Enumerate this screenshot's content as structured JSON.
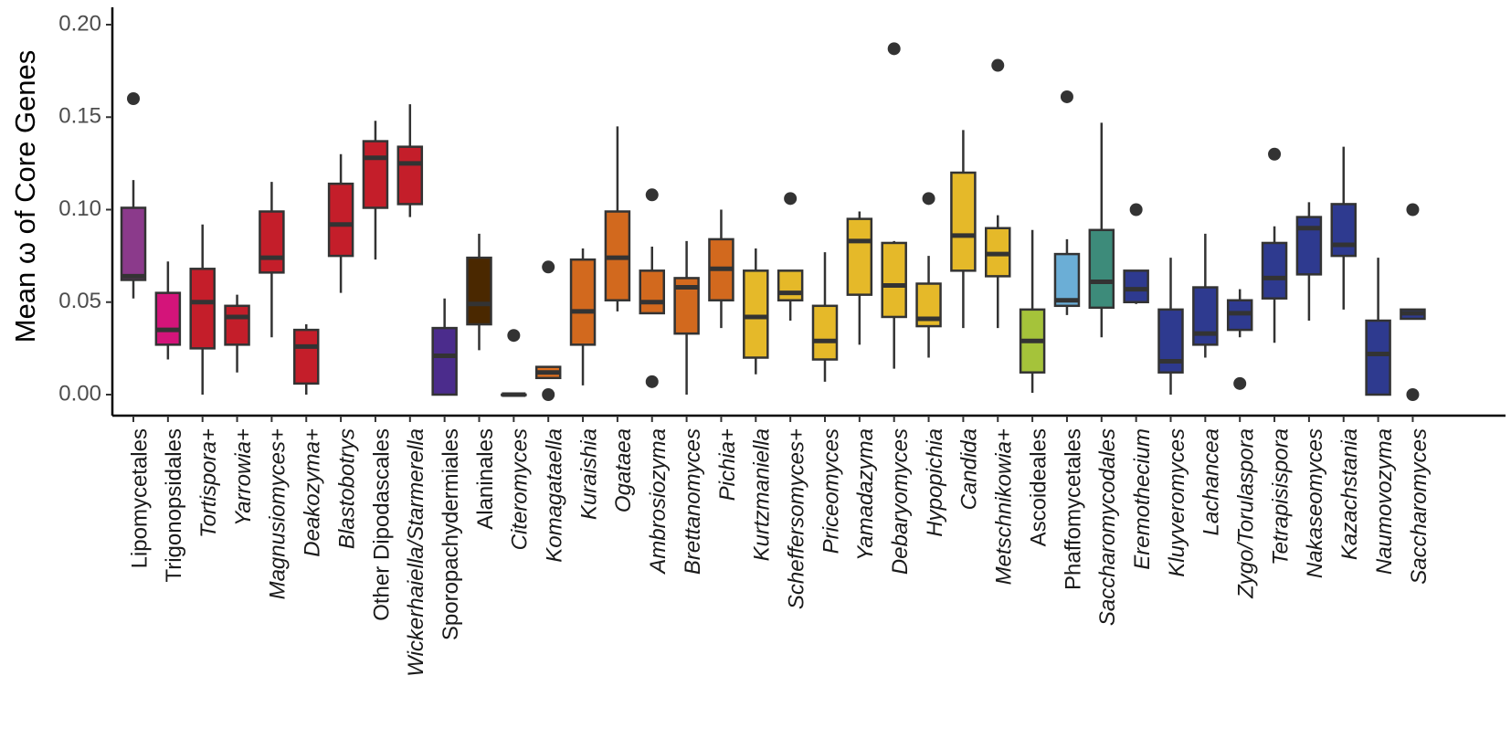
{
  "chart_data": {
    "type": "box",
    "title": "",
    "xlabel": "",
    "ylabel": "Mean ω of Core Genes",
    "ylim": [
      -0.01,
      0.21
    ],
    "yticks": [
      0.0,
      0.05,
      0.1,
      0.15,
      0.2
    ],
    "ytick_labels": [
      "0.00",
      "0.05",
      "0.10",
      "0.15",
      "0.20"
    ],
    "grid": false,
    "legend": "none",
    "groups": [
      {
        "label": "Lipomycetales",
        "italic": false,
        "color": "#8B3A8B",
        "min": 0.052,
        "q1": 0.062,
        "median": 0.064,
        "q3": 0.101,
        "max": 0.116,
        "outliers": [
          0.16
        ]
      },
      {
        "label": "Trigonopsidales",
        "italic": false,
        "color": "#D4147A",
        "min": 0.019,
        "q1": 0.027,
        "median": 0.035,
        "q3": 0.055,
        "max": 0.072,
        "outliers": []
      },
      {
        "label": "Tortispora+",
        "italic": true,
        "color": "#C41E2A",
        "min": 0.0,
        "q1": 0.025,
        "median": 0.05,
        "q3": 0.068,
        "max": 0.092,
        "outliers": []
      },
      {
        "label": "Yarrowia+",
        "italic": true,
        "color": "#C41E2A",
        "min": 0.012,
        "q1": 0.027,
        "median": 0.042,
        "q3": 0.048,
        "max": 0.054,
        "outliers": []
      },
      {
        "label": "Magnusiomyces+",
        "italic": true,
        "color": "#C41E2A",
        "min": 0.031,
        "q1": 0.066,
        "median": 0.074,
        "q3": 0.099,
        "max": 0.115,
        "outliers": []
      },
      {
        "label": "Deakozyma+",
        "italic": true,
        "color": "#C41E2A",
        "min": 0.0,
        "q1": 0.006,
        "median": 0.026,
        "q3": 0.035,
        "max": 0.038,
        "outliers": []
      },
      {
        "label": "Blastobotrys",
        "italic": true,
        "color": "#C41E2A",
        "min": 0.055,
        "q1": 0.075,
        "median": 0.092,
        "q3": 0.114,
        "max": 0.13,
        "outliers": []
      },
      {
        "label": "Other Dipodascales",
        "italic": false,
        "color": "#C41E2A",
        "min": 0.073,
        "q1": 0.101,
        "median": 0.128,
        "q3": 0.137,
        "max": 0.148,
        "outliers": []
      },
      {
        "label": "Wickerhaiella/Starmerella",
        "italic": true,
        "color": "#C41E2A",
        "min": 0.096,
        "q1": 0.103,
        "median": 0.125,
        "q3": 0.134,
        "max": 0.157,
        "outliers": []
      },
      {
        "label": "Sporopachydermiales",
        "italic": false,
        "color": "#4B2C8C",
        "min": 0.0,
        "q1": 0.0,
        "median": 0.021,
        "q3": 0.036,
        "max": 0.052,
        "outliers": []
      },
      {
        "label": "Alaninales",
        "italic": false,
        "color": "#4A2800",
        "min": 0.024,
        "q1": 0.038,
        "median": 0.049,
        "q3": 0.074,
        "max": 0.087,
        "outliers": []
      },
      {
        "label": "Citeromyces",
        "italic": true,
        "color": "#E07020",
        "min": 0.0,
        "q1": 0.0,
        "median": 0.0,
        "q3": 0.0,
        "max": 0.0,
        "outliers": [
          0.032
        ]
      },
      {
        "label": "Komagataella",
        "italic": true,
        "color": "#E07020",
        "min": 0.009,
        "q1": 0.009,
        "median": 0.012,
        "q3": 0.015,
        "max": 0.015,
        "outliers": [
          0.069,
          0.0
        ]
      },
      {
        "label": "Kuraishia",
        "italic": true,
        "color": "#D2691E",
        "min": 0.005,
        "q1": 0.027,
        "median": 0.045,
        "q3": 0.073,
        "max": 0.079,
        "outliers": []
      },
      {
        "label": "Ogataea",
        "italic": true,
        "color": "#D2691E",
        "min": 0.045,
        "q1": 0.051,
        "median": 0.074,
        "q3": 0.099,
        "max": 0.145,
        "outliers": []
      },
      {
        "label": "Ambrosiozyma",
        "italic": true,
        "color": "#D2691E",
        "min": 0.044,
        "q1": 0.044,
        "median": 0.05,
        "q3": 0.067,
        "max": 0.08,
        "outliers": [
          0.108,
          0.007
        ]
      },
      {
        "label": "Brettanomyces",
        "italic": true,
        "color": "#D2691E",
        "min": 0.0,
        "q1": 0.033,
        "median": 0.058,
        "q3": 0.063,
        "max": 0.083,
        "outliers": []
      },
      {
        "label": "Pichia+",
        "italic": true,
        "color": "#D2691E",
        "min": 0.036,
        "q1": 0.051,
        "median": 0.068,
        "q3": 0.084,
        "max": 0.1,
        "outliers": []
      },
      {
        "label": "Kurtzmaniella",
        "italic": true,
        "color": "#E5B929",
        "min": 0.011,
        "q1": 0.02,
        "median": 0.042,
        "q3": 0.067,
        "max": 0.079,
        "outliers": []
      },
      {
        "label": "Scheffersomyces+",
        "italic": true,
        "color": "#E5B929",
        "min": 0.04,
        "q1": 0.051,
        "median": 0.055,
        "q3": 0.067,
        "max": 0.067,
        "outliers": [
          0.106
        ]
      },
      {
        "label": "Priceomyces",
        "italic": true,
        "color": "#E5B929",
        "min": 0.007,
        "q1": 0.019,
        "median": 0.029,
        "q3": 0.048,
        "max": 0.077,
        "outliers": []
      },
      {
        "label": "Yamadazyma",
        "italic": true,
        "color": "#E5B929",
        "min": 0.027,
        "q1": 0.054,
        "median": 0.083,
        "q3": 0.095,
        "max": 0.099,
        "outliers": []
      },
      {
        "label": "Debaryomyces",
        "italic": true,
        "color": "#E5B929",
        "min": 0.014,
        "q1": 0.042,
        "median": 0.059,
        "q3": 0.082,
        "max": 0.083,
        "outliers": [
          0.187
        ]
      },
      {
        "label": "Hypopichia",
        "italic": true,
        "color": "#E5B929",
        "min": 0.02,
        "q1": 0.037,
        "median": 0.041,
        "q3": 0.06,
        "max": 0.075,
        "outliers": [
          0.106
        ]
      },
      {
        "label": "Candida",
        "italic": true,
        "color": "#E5B929",
        "min": 0.036,
        "q1": 0.067,
        "median": 0.086,
        "q3": 0.12,
        "max": 0.143,
        "outliers": []
      },
      {
        "label": "Metschnikowia+",
        "italic": true,
        "color": "#E5B929",
        "min": 0.036,
        "q1": 0.064,
        "median": 0.076,
        "q3": 0.09,
        "max": 0.097,
        "outliers": [
          0.178
        ]
      },
      {
        "label": "Ascoideales",
        "italic": false,
        "color": "#A5C33A",
        "min": 0.001,
        "q1": 0.012,
        "median": 0.029,
        "q3": 0.046,
        "max": 0.089,
        "outliers": []
      },
      {
        "label": "Phaffomycetales",
        "italic": false,
        "color": "#6BAED6",
        "min": 0.043,
        "q1": 0.048,
        "median": 0.051,
        "q3": 0.076,
        "max": 0.084,
        "outliers": [
          0.161
        ]
      },
      {
        "label": "Saccharomycodales",
        "italic": true,
        "color": "#3D8B7A",
        "min": 0.031,
        "q1": 0.047,
        "median": 0.061,
        "q3": 0.089,
        "max": 0.147,
        "outliers": []
      },
      {
        "label": "Eremothecium",
        "italic": true,
        "color": "#2E3A8F",
        "min": 0.049,
        "q1": 0.05,
        "median": 0.057,
        "q3": 0.067,
        "max": 0.067,
        "outliers": [
          0.1
        ]
      },
      {
        "label": "Kluyveromyces",
        "italic": true,
        "color": "#2E3A8F",
        "min": 0.0,
        "q1": 0.012,
        "median": 0.018,
        "q3": 0.046,
        "max": 0.074,
        "outliers": []
      },
      {
        "label": "Lachancea",
        "italic": true,
        "color": "#2E3A8F",
        "min": 0.02,
        "q1": 0.027,
        "median": 0.033,
        "q3": 0.058,
        "max": 0.087,
        "outliers": []
      },
      {
        "label": "Zygo/Torulaspora",
        "italic": true,
        "color": "#2E3A8F",
        "min": 0.031,
        "q1": 0.035,
        "median": 0.044,
        "q3": 0.051,
        "max": 0.057,
        "outliers": [
          0.006
        ]
      },
      {
        "label": "Tetrapisispora",
        "italic": true,
        "color": "#2E3A8F",
        "min": 0.028,
        "q1": 0.052,
        "median": 0.063,
        "q3": 0.082,
        "max": 0.091,
        "outliers": [
          0.13
        ]
      },
      {
        "label": "Nakaseomyces",
        "italic": true,
        "color": "#2E3A8F",
        "min": 0.04,
        "q1": 0.065,
        "median": 0.09,
        "q3": 0.096,
        "max": 0.104,
        "outliers": []
      },
      {
        "label": "Kazachstania",
        "italic": true,
        "color": "#2E3A8F",
        "min": 0.046,
        "q1": 0.075,
        "median": 0.081,
        "q3": 0.103,
        "max": 0.134,
        "outliers": []
      },
      {
        "label": "Naumovozyma",
        "italic": true,
        "color": "#2E3A8F",
        "min": 0.0,
        "q1": 0.0,
        "median": 0.022,
        "q3": 0.04,
        "max": 0.074,
        "outliers": []
      },
      {
        "label": "Saccharomyces",
        "italic": true,
        "color": "#2E3A8F",
        "min": 0.041,
        "q1": 0.041,
        "median": 0.044,
        "q3": 0.046,
        "max": 0.046,
        "outliers": [
          0.1,
          0.0
        ]
      }
    ]
  }
}
